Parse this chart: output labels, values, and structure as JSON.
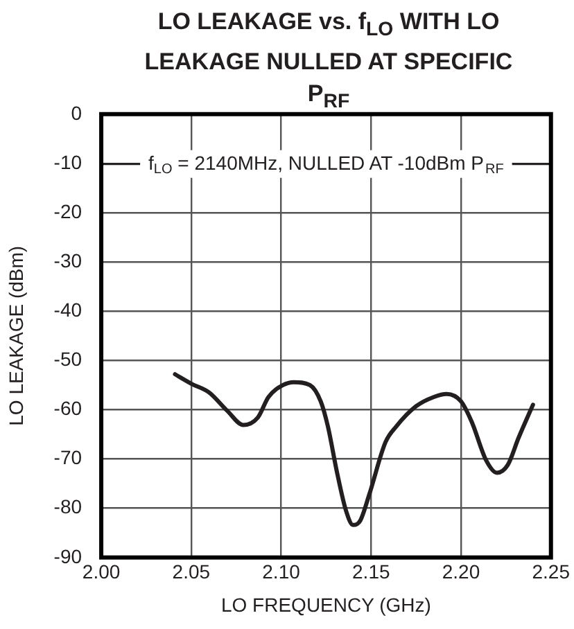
{
  "chart_data": {
    "type": "line",
    "title": "LO LEAKAGE vs. f$_{LO}$ WITH LO LEAKAGE NULLED AT SPECIFIC P$_{RF}$",
    "xlabel": "LO FREQUENCY (GHz)",
    "ylabel": "LO LEAKAGE (dBm)",
    "xlim": [
      2.0,
      2.25
    ],
    "xticks": [
      {
        "value": 2.0,
        "label": "2.00"
      },
      {
        "value": 2.05,
        "label": "2.05"
      },
      {
        "value": 2.1,
        "label": "2.10"
      },
      {
        "value": 2.15,
        "label": "2.15"
      },
      {
        "value": 2.2,
        "label": "2.20"
      },
      {
        "value": 2.25,
        "label": "2.25"
      }
    ],
    "ylim": [
      -90,
      0
    ],
    "yticks": [
      -90,
      -80,
      -70,
      -60,
      -50,
      -40,
      -30,
      -20,
      -10,
      0
    ],
    "grid": true,
    "legend": "top",
    "marker": "none",
    "line_style": "solid",
    "series": [
      {
        "name": "f$_{LO}$ = 2140MHz, NULLED AT -10dBm P$_{RF}$",
        "color": "#231f20",
        "x": [
          2.041,
          2.05,
          2.06,
          2.07,
          2.079,
          2.087,
          2.093,
          2.101,
          2.107,
          2.116,
          2.122,
          2.126,
          2.131,
          2.136,
          2.14,
          2.144,
          2.149,
          2.158,
          2.164,
          2.175,
          2.185,
          2.192,
          2.2,
          2.206,
          2.214,
          2.22,
          2.226,
          2.232,
          2.24
        ],
        "values": [
          -52.8,
          -54.7,
          -56.5,
          -60.2,
          -63.1,
          -61.6,
          -57.4,
          -55.0,
          -54.4,
          -55.0,
          -58.3,
          -63.4,
          -72.6,
          -80.4,
          -83.4,
          -82.5,
          -77.2,
          -66.6,
          -63.4,
          -59.3,
          -57.4,
          -56.8,
          -58.3,
          -62.5,
          -70.3,
          -72.8,
          -71.2,
          -65.7,
          -59.0
        ]
      }
    ]
  }
}
